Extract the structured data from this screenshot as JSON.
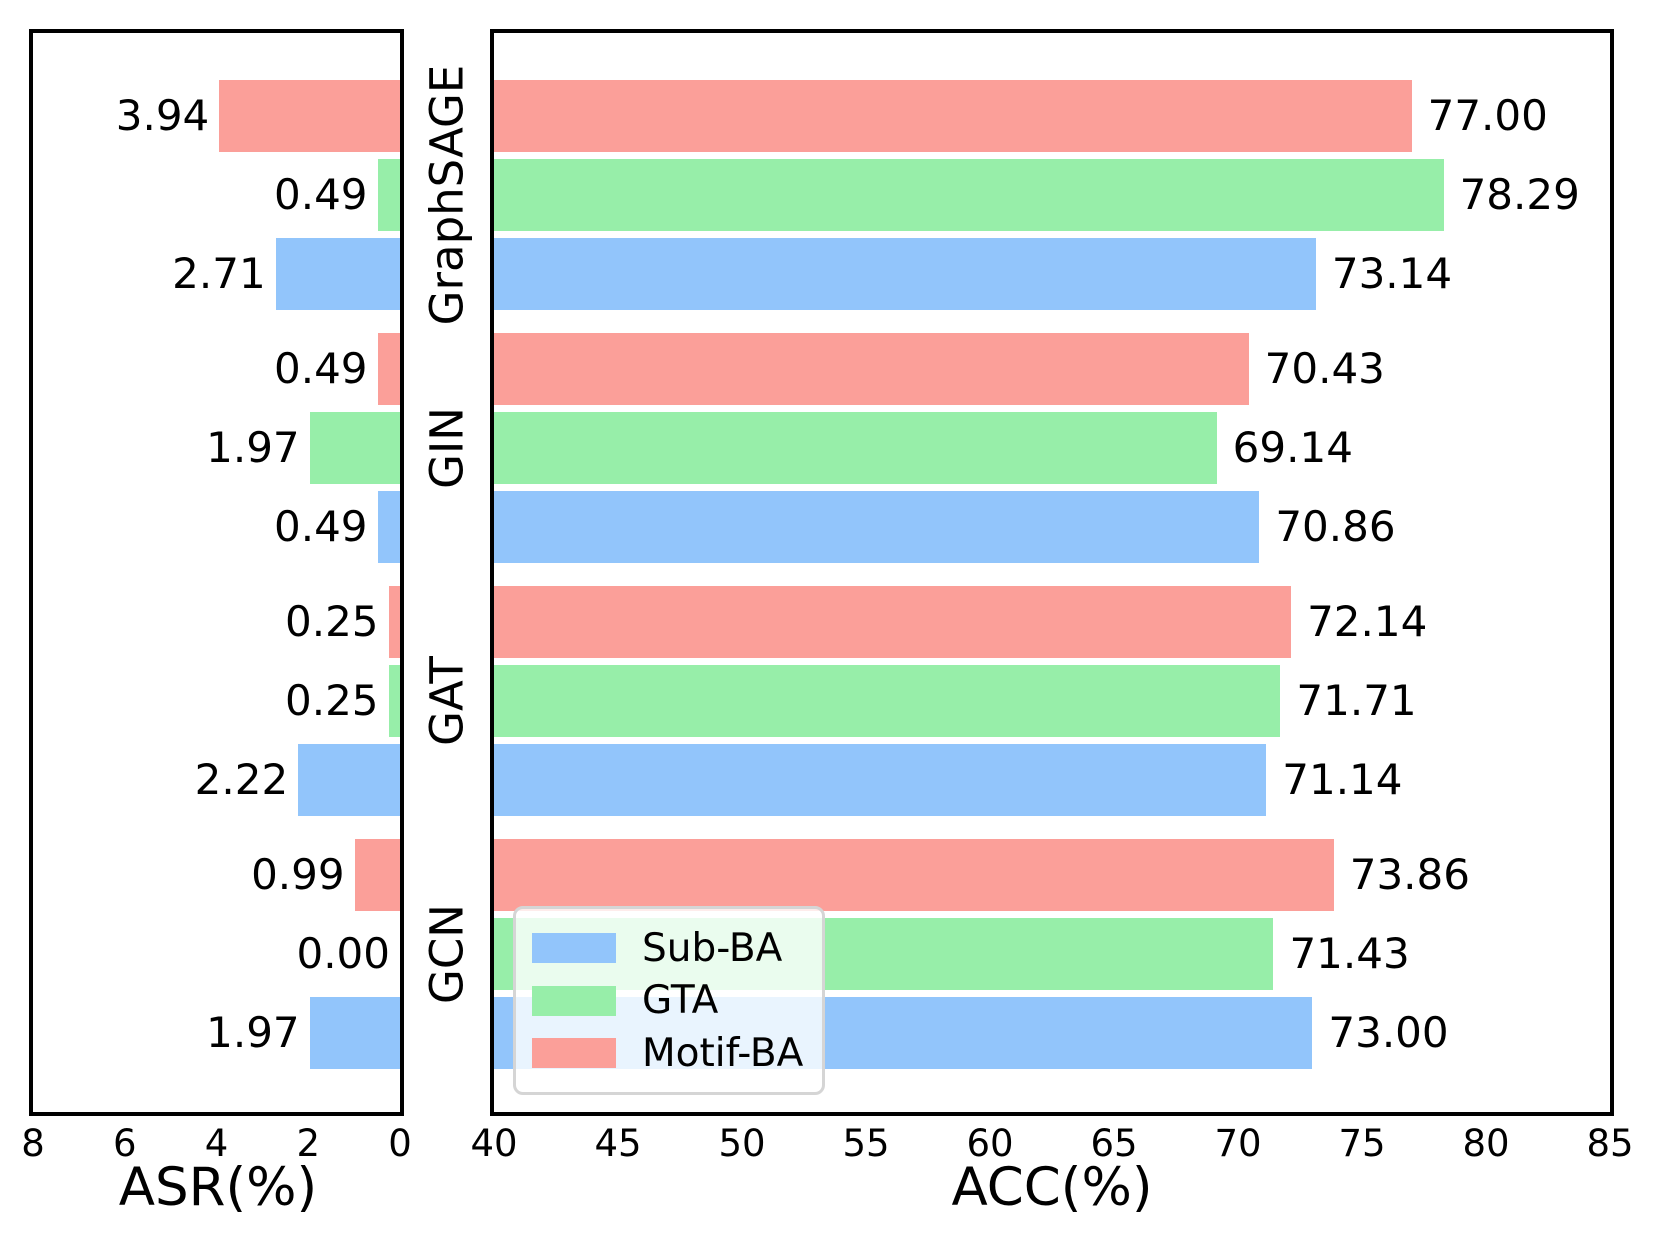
{
  "chart_data": {
    "type": "bar",
    "orientation": "horizontal",
    "categories": [
      "GraphSAGE",
      "GIN",
      "GAT",
      "GCN"
    ],
    "row_order_top_to_bottom": [
      "Motif-BA",
      "GTA",
      "Sub-BA"
    ],
    "colors": {
      "sub_ba_blue": "#92C5FB",
      "gta_green": "#97EEA9",
      "motif_ba_red": "#FB9F99"
    },
    "panels": [
      {
        "id": "asr",
        "xlabel": "ASR(%)",
        "axis_min": 0,
        "axis_max": 8,
        "direction": "right-to-left",
        "grid": false,
        "xticks": [
          "8",
          "6",
          "4",
          "2",
          "0"
        ],
        "series": [
          {
            "name": "Sub-BA",
            "color": "#92C5FB",
            "values": [
              "2.71",
              "0.49",
              "2.22",
              "1.97"
            ]
          },
          {
            "name": "GTA",
            "color": "#97EEA9",
            "values": [
              "0.49",
              "1.97",
              "0.25",
              "0.00"
            ]
          },
          {
            "name": "Motif-BA",
            "color": "#FB9F99",
            "values": [
              "3.94",
              "0.49",
              "0.25",
              "0.99"
            ]
          }
        ]
      },
      {
        "id": "acc",
        "xlabel": "ACC(%)",
        "axis_min": 40,
        "axis_max": 85,
        "direction": "left-to-right",
        "grid": false,
        "xticks": [
          "40",
          "45",
          "50",
          "55",
          "60",
          "65",
          "70",
          "75",
          "80",
          "85"
        ],
        "series": [
          {
            "name": "Sub-BA",
            "color": "#92C5FB",
            "values": [
              "73.14",
              "70.86",
              "71.14",
              "73.00"
            ]
          },
          {
            "name": "GTA",
            "color": "#97EEA9",
            "values": [
              "78.29",
              "69.14",
              "71.71",
              "71.43"
            ]
          },
          {
            "name": "Motif-BA",
            "color": "#FB9F99",
            "values": [
              "77.00",
              "70.43",
              "72.14",
              "73.86"
            ]
          }
        ]
      }
    ],
    "legend": {
      "position": "lower left of ACC panel",
      "entries": [
        {
          "label": "Sub-BA",
          "color": "#92C5FB"
        },
        {
          "label": "GTA",
          "color": "#97EEA9"
        },
        {
          "label": "Motif-BA",
          "color": "#FB9F99"
        }
      ]
    }
  }
}
